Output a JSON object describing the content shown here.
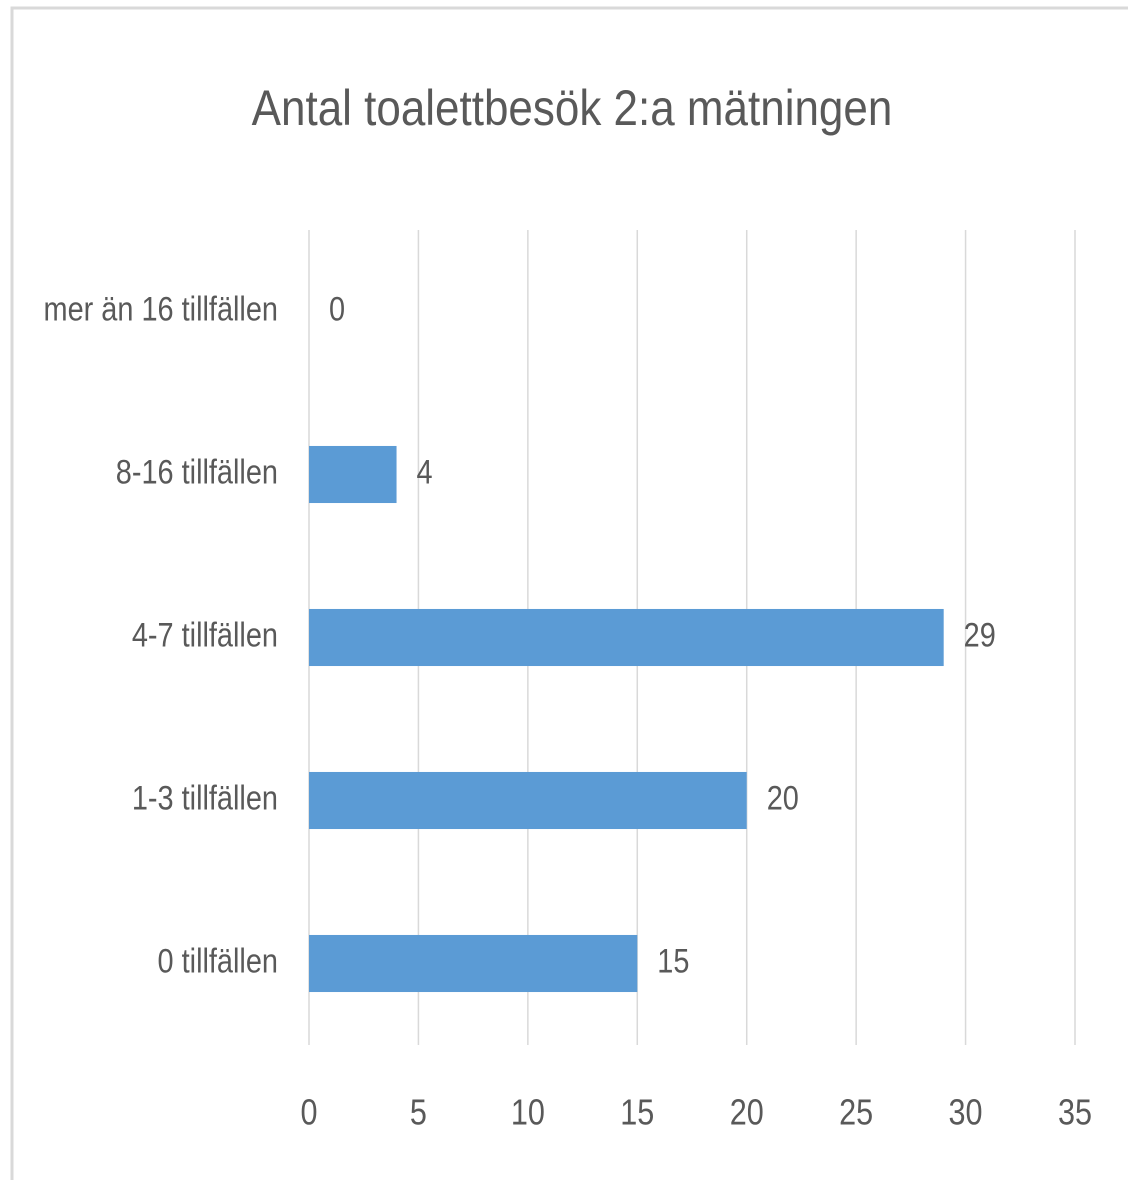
{
  "chart_data": {
    "type": "barh",
    "title": "Antal toalettbesök 2:a mätningen",
    "categories": [
      "mer än 16 tillfällen",
      "8-16 tillfällen",
      "4-7 tillfällen",
      "1-3 tillfällen",
      "0 tillfällen"
    ],
    "values": [
      0,
      4,
      29,
      20,
      15
    ],
    "color": "#5b9bd5",
    "xlim": [
      0,
      35
    ],
    "xticks": [
      0,
      5,
      10,
      15,
      20,
      25,
      30,
      35
    ],
    "grid": true,
    "data_labels": true
  }
}
